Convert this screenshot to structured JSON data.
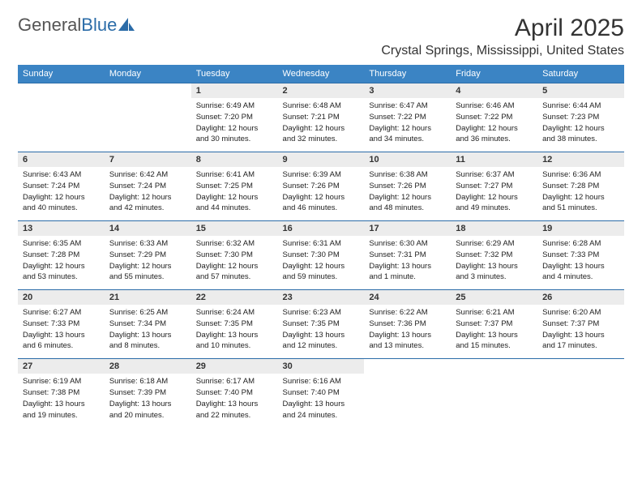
{
  "brand": {
    "part1": "General",
    "part2": "Blue"
  },
  "title": "April 2025",
  "location": "Crystal Springs, Mississippi, United States",
  "colors": {
    "header_bg": "#3b84c4",
    "header_text": "#ffffff",
    "daynum_bg": "#ececec",
    "separator": "#2b6ca8",
    "logo_gray": "#555555",
    "logo_blue": "#2b6ca8",
    "text": "#222222",
    "background": "#ffffff"
  },
  "typography": {
    "month_title_fontsize": 30,
    "location_fontsize": 16,
    "dayhead_fontsize": 11,
    "daynum_fontsize": 11,
    "body_fontsize": 9.5
  },
  "day_names": [
    "Sunday",
    "Monday",
    "Tuesday",
    "Wednesday",
    "Thursday",
    "Friday",
    "Saturday"
  ],
  "weeks": [
    [
      null,
      null,
      {
        "num": "1",
        "sunrise": "Sunrise: 6:49 AM",
        "sunset": "Sunset: 7:20 PM",
        "daylight": "Daylight: 12 hours and 30 minutes."
      },
      {
        "num": "2",
        "sunrise": "Sunrise: 6:48 AM",
        "sunset": "Sunset: 7:21 PM",
        "daylight": "Daylight: 12 hours and 32 minutes."
      },
      {
        "num": "3",
        "sunrise": "Sunrise: 6:47 AM",
        "sunset": "Sunset: 7:22 PM",
        "daylight": "Daylight: 12 hours and 34 minutes."
      },
      {
        "num": "4",
        "sunrise": "Sunrise: 6:46 AM",
        "sunset": "Sunset: 7:22 PM",
        "daylight": "Daylight: 12 hours and 36 minutes."
      },
      {
        "num": "5",
        "sunrise": "Sunrise: 6:44 AM",
        "sunset": "Sunset: 7:23 PM",
        "daylight": "Daylight: 12 hours and 38 minutes."
      }
    ],
    [
      {
        "num": "6",
        "sunrise": "Sunrise: 6:43 AM",
        "sunset": "Sunset: 7:24 PM",
        "daylight": "Daylight: 12 hours and 40 minutes."
      },
      {
        "num": "7",
        "sunrise": "Sunrise: 6:42 AM",
        "sunset": "Sunset: 7:24 PM",
        "daylight": "Daylight: 12 hours and 42 minutes."
      },
      {
        "num": "8",
        "sunrise": "Sunrise: 6:41 AM",
        "sunset": "Sunset: 7:25 PM",
        "daylight": "Daylight: 12 hours and 44 minutes."
      },
      {
        "num": "9",
        "sunrise": "Sunrise: 6:39 AM",
        "sunset": "Sunset: 7:26 PM",
        "daylight": "Daylight: 12 hours and 46 minutes."
      },
      {
        "num": "10",
        "sunrise": "Sunrise: 6:38 AM",
        "sunset": "Sunset: 7:26 PM",
        "daylight": "Daylight: 12 hours and 48 minutes."
      },
      {
        "num": "11",
        "sunrise": "Sunrise: 6:37 AM",
        "sunset": "Sunset: 7:27 PM",
        "daylight": "Daylight: 12 hours and 49 minutes."
      },
      {
        "num": "12",
        "sunrise": "Sunrise: 6:36 AM",
        "sunset": "Sunset: 7:28 PM",
        "daylight": "Daylight: 12 hours and 51 minutes."
      }
    ],
    [
      {
        "num": "13",
        "sunrise": "Sunrise: 6:35 AM",
        "sunset": "Sunset: 7:28 PM",
        "daylight": "Daylight: 12 hours and 53 minutes."
      },
      {
        "num": "14",
        "sunrise": "Sunrise: 6:33 AM",
        "sunset": "Sunset: 7:29 PM",
        "daylight": "Daylight: 12 hours and 55 minutes."
      },
      {
        "num": "15",
        "sunrise": "Sunrise: 6:32 AM",
        "sunset": "Sunset: 7:30 PM",
        "daylight": "Daylight: 12 hours and 57 minutes."
      },
      {
        "num": "16",
        "sunrise": "Sunrise: 6:31 AM",
        "sunset": "Sunset: 7:30 PM",
        "daylight": "Daylight: 12 hours and 59 minutes."
      },
      {
        "num": "17",
        "sunrise": "Sunrise: 6:30 AM",
        "sunset": "Sunset: 7:31 PM",
        "daylight": "Daylight: 13 hours and 1 minute."
      },
      {
        "num": "18",
        "sunrise": "Sunrise: 6:29 AM",
        "sunset": "Sunset: 7:32 PM",
        "daylight": "Daylight: 13 hours and 3 minutes."
      },
      {
        "num": "19",
        "sunrise": "Sunrise: 6:28 AM",
        "sunset": "Sunset: 7:33 PM",
        "daylight": "Daylight: 13 hours and 4 minutes."
      }
    ],
    [
      {
        "num": "20",
        "sunrise": "Sunrise: 6:27 AM",
        "sunset": "Sunset: 7:33 PM",
        "daylight": "Daylight: 13 hours and 6 minutes."
      },
      {
        "num": "21",
        "sunrise": "Sunrise: 6:25 AM",
        "sunset": "Sunset: 7:34 PM",
        "daylight": "Daylight: 13 hours and 8 minutes."
      },
      {
        "num": "22",
        "sunrise": "Sunrise: 6:24 AM",
        "sunset": "Sunset: 7:35 PM",
        "daylight": "Daylight: 13 hours and 10 minutes."
      },
      {
        "num": "23",
        "sunrise": "Sunrise: 6:23 AM",
        "sunset": "Sunset: 7:35 PM",
        "daylight": "Daylight: 13 hours and 12 minutes."
      },
      {
        "num": "24",
        "sunrise": "Sunrise: 6:22 AM",
        "sunset": "Sunset: 7:36 PM",
        "daylight": "Daylight: 13 hours and 13 minutes."
      },
      {
        "num": "25",
        "sunrise": "Sunrise: 6:21 AM",
        "sunset": "Sunset: 7:37 PM",
        "daylight": "Daylight: 13 hours and 15 minutes."
      },
      {
        "num": "26",
        "sunrise": "Sunrise: 6:20 AM",
        "sunset": "Sunset: 7:37 PM",
        "daylight": "Daylight: 13 hours and 17 minutes."
      }
    ],
    [
      {
        "num": "27",
        "sunrise": "Sunrise: 6:19 AM",
        "sunset": "Sunset: 7:38 PM",
        "daylight": "Daylight: 13 hours and 19 minutes."
      },
      {
        "num": "28",
        "sunrise": "Sunrise: 6:18 AM",
        "sunset": "Sunset: 7:39 PM",
        "daylight": "Daylight: 13 hours and 20 minutes."
      },
      {
        "num": "29",
        "sunrise": "Sunrise: 6:17 AM",
        "sunset": "Sunset: 7:40 PM",
        "daylight": "Daylight: 13 hours and 22 minutes."
      },
      {
        "num": "30",
        "sunrise": "Sunrise: 6:16 AM",
        "sunset": "Sunset: 7:40 PM",
        "daylight": "Daylight: 13 hours and 24 minutes."
      },
      null,
      null,
      null
    ]
  ]
}
